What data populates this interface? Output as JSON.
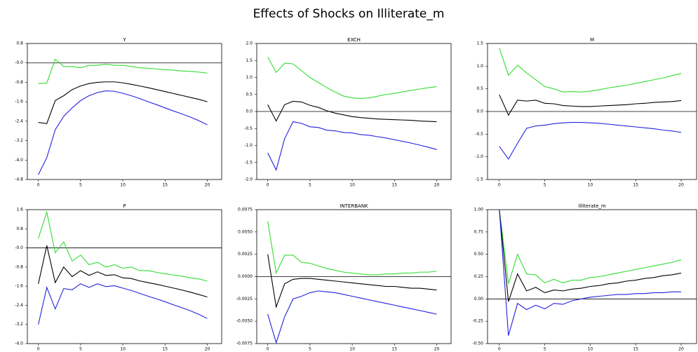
{
  "title": "Effects of Shocks on Illiterate_m",
  "chart_data": [
    {
      "type": "line",
      "title": "Y",
      "x": [
        0,
        1,
        2,
        3,
        4,
        5,
        6,
        7,
        8,
        9,
        10,
        11,
        12,
        13,
        14,
        15,
        16,
        17,
        18,
        19,
        20
      ],
      "xlim": [
        -1.3,
        21.7
      ],
      "xticks": [
        0,
        5,
        10,
        15,
        20
      ],
      "ylim": [
        -4.8,
        0.8
      ],
      "yticks": [
        0.8,
        {
          "value": 0,
          "label": "-0.0"
        },
        -0.8,
        -1.6,
        -2.4,
        -3.2,
        {
          "value": -4,
          "label": "-4.0"
        },
        -4.8
      ],
      "series": [
        {
          "color": "#33dd33",
          "values": [
            -0.85,
            -0.83,
            0.15,
            -0.15,
            -0.15,
            -0.2,
            -0.1,
            -0.1,
            -0.05,
            -0.1,
            -0.1,
            -0.15,
            -0.2,
            -0.22,
            -0.25,
            -0.28,
            -0.3,
            -0.33,
            -0.35,
            -0.38,
            -0.42
          ]
        },
        {
          "color": "#000000",
          "values": [
            -2.45,
            -2.5,
            -1.55,
            -1.35,
            -1.1,
            -0.95,
            -0.85,
            -0.8,
            -0.78,
            -0.78,
            -0.82,
            -0.88,
            -0.95,
            -1.02,
            -1.1,
            -1.18,
            -1.26,
            -1.34,
            -1.42,
            -1.5,
            -1.6
          ]
        },
        {
          "color": "#2222dd",
          "values": [
            -4.6,
            -3.9,
            -2.75,
            -2.2,
            -1.85,
            -1.55,
            -1.35,
            -1.22,
            -1.15,
            -1.17,
            -1.25,
            -1.35,
            -1.47,
            -1.6,
            -1.72,
            -1.85,
            -1.98,
            -2.1,
            -2.23,
            -2.38,
            -2.55
          ]
        }
      ]
    },
    {
      "type": "line",
      "title": "EXCH",
      "x": [
        0,
        1,
        2,
        3,
        4,
        5,
        6,
        7,
        8,
        9,
        10,
        11,
        12,
        13,
        14,
        15,
        16,
        17,
        18,
        19,
        20
      ],
      "xlim": [
        -1.3,
        21.7
      ],
      "xticks": [
        0,
        5,
        10,
        15,
        20
      ],
      "ylim": [
        -2,
        2
      ],
      "yticks": [
        {
          "value": 2,
          "label": "2.0"
        },
        1.5,
        {
          "value": 1,
          "label": "1.0"
        },
        0.5,
        {
          "value": 0,
          "label": "0.0"
        },
        -0.5,
        {
          "value": -1,
          "label": "-1.0"
        },
        -1.5,
        {
          "value": -2,
          "label": "-2.0"
        }
      ],
      "series": [
        {
          "color": "#33dd33",
          "values": [
            1.6,
            1.15,
            1.42,
            1.4,
            1.2,
            1.0,
            0.85,
            0.7,
            0.57,
            0.45,
            0.4,
            0.38,
            0.4,
            0.45,
            0.5,
            0.53,
            0.58,
            0.62,
            0.66,
            0.7,
            0.73
          ]
        },
        {
          "color": "#000000",
          "values": [
            0.2,
            -0.28,
            0.2,
            0.3,
            0.28,
            0.18,
            0.12,
            0.02,
            -0.05,
            -0.1,
            -0.15,
            -0.18,
            -0.2,
            -0.22,
            -0.23,
            -0.24,
            -0.25,
            -0.26,
            -0.28,
            -0.29,
            -0.3
          ]
        },
        {
          "color": "#2222dd",
          "values": [
            -1.22,
            -1.72,
            -0.8,
            -0.3,
            -0.35,
            -0.45,
            -0.47,
            -0.55,
            -0.57,
            -0.62,
            -0.63,
            -0.68,
            -0.7,
            -0.74,
            -0.78,
            -0.83,
            -0.88,
            -0.93,
            -0.99,
            -1.05,
            -1.12
          ]
        }
      ]
    },
    {
      "type": "line",
      "title": "M",
      "x": [
        0,
        1,
        2,
        3,
        4,
        5,
        6,
        7,
        8,
        9,
        10,
        11,
        12,
        13,
        14,
        15,
        16,
        17,
        18,
        19,
        20
      ],
      "xlim": [
        -1.3,
        21.7
      ],
      "xticks": [
        0,
        5,
        10,
        15,
        20
      ],
      "ylim": [
        -1.5,
        1.5
      ],
      "yticks": [
        1.5,
        {
          "value": 1,
          "label": "1.0"
        },
        0.5,
        {
          "value": 0,
          "label": "0.0"
        },
        -0.5,
        {
          "value": -1,
          "label": "-1.0"
        },
        -1.5
      ],
      "series": [
        {
          "color": "#33dd33",
          "values": [
            1.4,
            0.8,
            1.02,
            0.85,
            0.7,
            0.55,
            0.5,
            0.43,
            0.44,
            0.43,
            0.45,
            0.48,
            0.52,
            0.55,
            0.58,
            0.62,
            0.66,
            0.7,
            0.74,
            0.79,
            0.84
          ]
        },
        {
          "color": "#000000",
          "values": [
            0.37,
            -0.08,
            0.25,
            0.23,
            0.25,
            0.18,
            0.17,
            0.13,
            0.12,
            0.11,
            0.11,
            0.12,
            0.13,
            0.14,
            0.15,
            0.17,
            0.18,
            0.2,
            0.21,
            0.22,
            0.24
          ]
        },
        {
          "color": "#2222dd",
          "values": [
            -0.77,
            -1.05,
            -0.7,
            -0.37,
            -0.32,
            -0.3,
            -0.27,
            -0.25,
            -0.24,
            -0.24,
            -0.25,
            -0.26,
            -0.28,
            -0.3,
            -0.32,
            -0.34,
            -0.36,
            -0.38,
            -0.41,
            -0.43,
            -0.46
          ]
        }
      ]
    },
    {
      "type": "line",
      "title": "P",
      "x": [
        0,
        1,
        2,
        3,
        4,
        5,
        6,
        7,
        8,
        9,
        10,
        11,
        12,
        13,
        14,
        15,
        16,
        17,
        18,
        19,
        20
      ],
      "xlim": [
        -1.3,
        21.7
      ],
      "xticks": [
        0,
        5,
        10,
        15,
        20
      ],
      "ylim": [
        -4,
        1.6
      ],
      "yticks": [
        1.6,
        0.8,
        {
          "value": 0,
          "label": "-0.0"
        },
        -0.8,
        -1.6,
        -2.4,
        -3.2,
        {
          "value": -4,
          "label": "-4.0"
        }
      ],
      "series": [
        {
          "color": "#33dd33",
          "values": [
            0.4,
            1.5,
            -0.2,
            0.25,
            -0.55,
            -0.3,
            -0.7,
            -0.6,
            -0.8,
            -0.7,
            -0.85,
            -0.8,
            -0.95,
            -0.95,
            -1.02,
            -1.08,
            -1.13,
            -1.18,
            -1.25,
            -1.3,
            -1.38
          ]
        },
        {
          "color": "#000000",
          "values": [
            -1.5,
            0.1,
            -1.45,
            -0.8,
            -1.2,
            -0.95,
            -1.15,
            -1.0,
            -1.15,
            -1.12,
            -1.25,
            -1.28,
            -1.38,
            -1.45,
            -1.52,
            -1.6,
            -1.68,
            -1.76,
            -1.85,
            -1.95,
            -2.05
          ]
        },
        {
          "color": "#2222dd",
          "values": [
            -3.2,
            -1.65,
            -2.55,
            -1.7,
            -1.75,
            -1.5,
            -1.65,
            -1.5,
            -1.62,
            -1.58,
            -1.68,
            -1.78,
            -1.9,
            -2.02,
            -2.13,
            -2.25,
            -2.38,
            -2.5,
            -2.63,
            -2.78,
            -2.95
          ]
        }
      ]
    },
    {
      "type": "line",
      "title": "INTERBANK",
      "x": [
        0,
        1,
        2,
        3,
        4,
        5,
        6,
        7,
        8,
        9,
        10,
        11,
        12,
        13,
        14,
        15,
        16,
        17,
        18,
        19,
        20
      ],
      "xlim": [
        -1.3,
        21.7
      ],
      "xticks": [
        0,
        5,
        10,
        15,
        20
      ],
      "ylim": [
        -0.0075,
        0.0075
      ],
      "yticks": [
        0.0075,
        {
          "value": 0.005,
          "label": "0.0050"
        },
        0.0025,
        {
          "value": 0,
          "label": "0.0000"
        },
        -0.0025,
        {
          "value": -0.005,
          "label": "-0.0050"
        },
        -0.0075
      ],
      "series": [
        {
          "color": "#33dd33",
          "values": [
            0.0062,
            0.0004,
            0.0024,
            0.0024,
            0.0016,
            0.0015,
            0.0012,
            0.0009,
            0.0007,
            0.0005,
            0.0004,
            0.0003,
            0.0002,
            0.0002,
            0.0003,
            0.0003,
            0.0004,
            0.0004,
            0.0005,
            0.0005,
            0.0006
          ]
        },
        {
          "color": "#000000",
          "values": [
            0.0025,
            -0.0034,
            -0.0008,
            -0.0003,
            -0.0002,
            -0.0002,
            -0.0003,
            -0.0004,
            -0.0005,
            -0.0006,
            -0.0007,
            -0.0008,
            -0.0009,
            -0.001,
            -0.0011,
            -0.0011,
            -0.0012,
            -0.0013,
            -0.0013,
            -0.0014,
            -0.0015
          ]
        },
        {
          "color": "#2222dd",
          "values": [
            -0.0042,
            -0.0074,
            -0.0045,
            -0.0025,
            -0.0022,
            -0.0018,
            -0.0016,
            -0.0017,
            -0.0018,
            -0.002,
            -0.0022,
            -0.0024,
            -0.0026,
            -0.0028,
            -0.003,
            -0.0032,
            -0.0034,
            -0.0036,
            -0.0038,
            -0.004,
            -0.0042
          ]
        }
      ]
    },
    {
      "type": "line",
      "title": "Illiterate_m",
      "x": [
        0,
        1,
        2,
        3,
        4,
        5,
        6,
        7,
        8,
        9,
        10,
        11,
        12,
        13,
        14,
        15,
        16,
        17,
        18,
        19,
        20
      ],
      "xlim": [
        -1.3,
        21.7
      ],
      "xticks": [
        0,
        5,
        10,
        15,
        20
      ],
      "ylim": [
        -0.5,
        1
      ],
      "yticks": [
        {
          "value": 1,
          "label": "1.00"
        },
        0.75,
        {
          "value": 0.5,
          "label": "0.50"
        },
        0.25,
        {
          "value": 0,
          "label": "0.00"
        },
        -0.25,
        {
          "value": -0.5,
          "label": "-0.50"
        }
      ],
      "series": [
        {
          "color": "#33dd33",
          "values": [
            1.0,
            0.17,
            0.5,
            0.28,
            0.27,
            0.18,
            0.22,
            0.18,
            0.21,
            0.21,
            0.24,
            0.25,
            0.27,
            0.29,
            0.31,
            0.33,
            0.35,
            0.37,
            0.39,
            0.41,
            0.44
          ]
        },
        {
          "color": "#000000",
          "values": [
            1.0,
            -0.03,
            0.28,
            0.09,
            0.13,
            0.07,
            0.1,
            0.09,
            0.11,
            0.12,
            0.14,
            0.15,
            0.17,
            0.18,
            0.2,
            0.21,
            0.23,
            0.24,
            0.26,
            0.27,
            0.29
          ]
        },
        {
          "color": "#2222dd",
          "values": [
            1.0,
            -0.41,
            -0.05,
            -0.12,
            -0.07,
            -0.11,
            -0.05,
            -0.06,
            -0.02,
            0.0,
            0.02,
            0.03,
            0.04,
            0.05,
            0.05,
            0.06,
            0.06,
            0.07,
            0.07,
            0.08,
            0.08
          ]
        }
      ]
    }
  ]
}
